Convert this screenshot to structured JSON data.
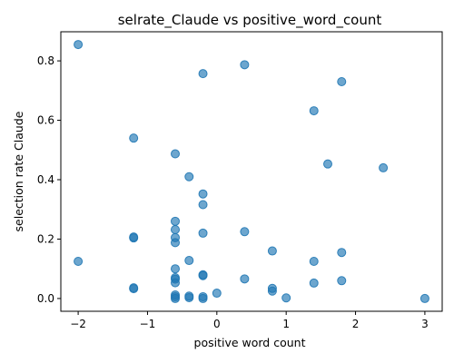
{
  "chart_data": {
    "type": "scatter",
    "title": "selrate_Claude vs positive_word_count",
    "xlabel": "positive word count",
    "ylabel": "selection rate Claude",
    "xlim": [
      -2.25,
      3.25
    ],
    "ylim": [
      -0.043,
      0.898
    ],
    "xticks": [
      -2,
      -1,
      0,
      1,
      2,
      3
    ],
    "yticks": [
      0.0,
      0.2,
      0.4,
      0.6,
      0.8
    ],
    "xtick_labels": [
      "−2",
      "−1",
      "0",
      "1",
      "2",
      "3"
    ],
    "ytick_labels": [
      "0.0",
      "0.2",
      "0.4",
      "0.6",
      "0.8"
    ],
    "grid": false,
    "marker_color": "#1f77b4",
    "marker_alpha": 0.65,
    "points": [
      {
        "x": -2.0,
        "y": 0.855
      },
      {
        "x": -2.0,
        "y": 0.125
      },
      {
        "x": -1.2,
        "y": 0.54
      },
      {
        "x": -1.2,
        "y": 0.207
      },
      {
        "x": -1.2,
        "y": 0.204
      },
      {
        "x": -1.2,
        "y": 0.036
      },
      {
        "x": -1.2,
        "y": 0.033
      },
      {
        "x": -0.6,
        "y": 0.487
      },
      {
        "x": -0.6,
        "y": 0.26
      },
      {
        "x": -0.6,
        "y": 0.232
      },
      {
        "x": -0.6,
        "y": 0.205
      },
      {
        "x": -0.6,
        "y": 0.188
      },
      {
        "x": -0.6,
        "y": 0.1
      },
      {
        "x": -0.6,
        "y": 0.07
      },
      {
        "x": -0.6,
        "y": 0.065
      },
      {
        "x": -0.6,
        "y": 0.053
      },
      {
        "x": -0.6,
        "y": 0.012
      },
      {
        "x": -0.6,
        "y": 0.006
      },
      {
        "x": -0.6,
        "y": 0.0
      },
      {
        "x": -0.4,
        "y": 0.41
      },
      {
        "x": -0.4,
        "y": 0.128
      },
      {
        "x": -0.4,
        "y": 0.008
      },
      {
        "x": -0.4,
        "y": 0.003
      },
      {
        "x": -0.2,
        "y": 0.757
      },
      {
        "x": -0.2,
        "y": 0.352
      },
      {
        "x": -0.2,
        "y": 0.316
      },
      {
        "x": -0.2,
        "y": 0.22
      },
      {
        "x": -0.2,
        "y": 0.08
      },
      {
        "x": -0.2,
        "y": 0.077
      },
      {
        "x": -0.2,
        "y": 0.006
      },
      {
        "x": -0.2,
        "y": 0.0
      },
      {
        "x": 0.0,
        "y": 0.018
      },
      {
        "x": 0.4,
        "y": 0.787
      },
      {
        "x": 0.4,
        "y": 0.225
      },
      {
        "x": 0.4,
        "y": 0.066
      },
      {
        "x": 0.8,
        "y": 0.16
      },
      {
        "x": 0.8,
        "y": 0.034
      },
      {
        "x": 0.8,
        "y": 0.025
      },
      {
        "x": 1.0,
        "y": 0.002
      },
      {
        "x": 1.4,
        "y": 0.632
      },
      {
        "x": 1.4,
        "y": 0.125
      },
      {
        "x": 1.4,
        "y": 0.052
      },
      {
        "x": 1.6,
        "y": 0.453
      },
      {
        "x": 1.8,
        "y": 0.73
      },
      {
        "x": 1.8,
        "y": 0.155
      },
      {
        "x": 1.8,
        "y": 0.06
      },
      {
        "x": 2.4,
        "y": 0.44
      },
      {
        "x": 3.0,
        "y": 0.0
      }
    ]
  }
}
